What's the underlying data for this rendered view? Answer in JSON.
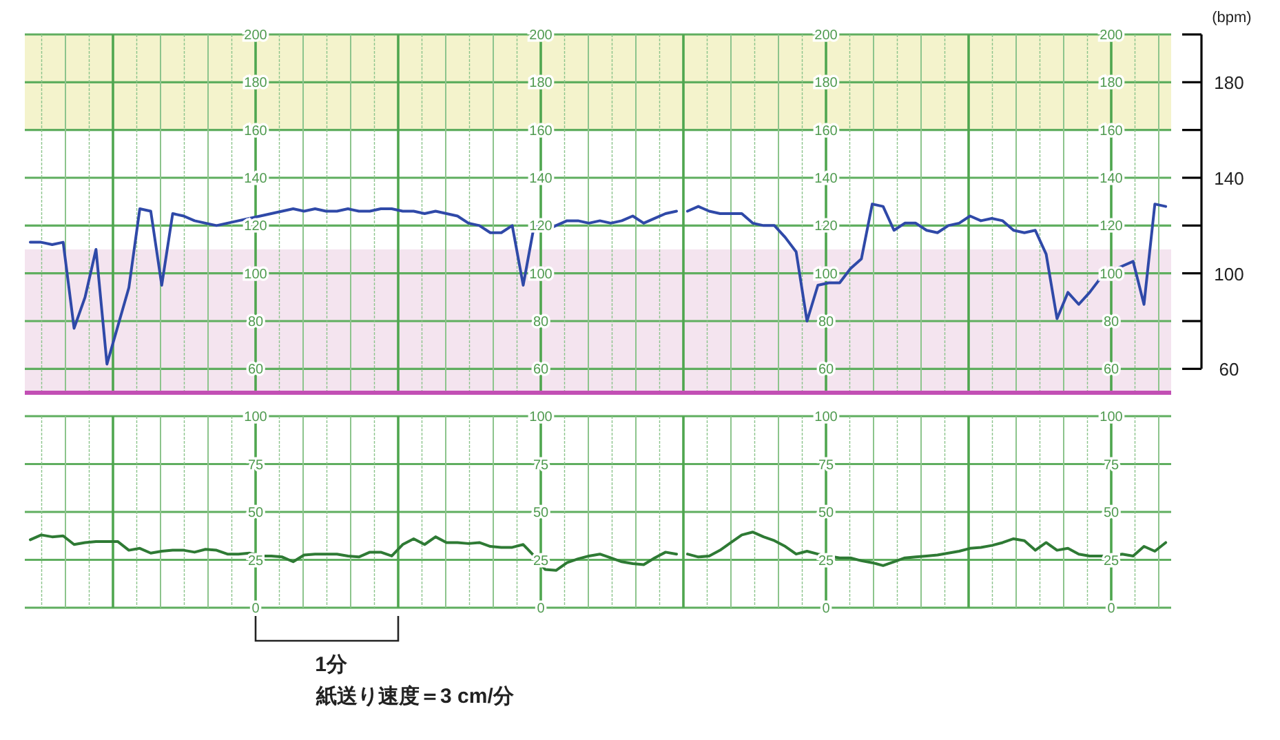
{
  "chart_data": [
    {
      "type": "line",
      "categories": [
        null,
        null,
        null,
        null,
        null,
        null,
        null,
        null,
        null,
        null,
        null,
        null,
        null,
        null,
        null,
        null,
        null,
        null,
        null,
        null,
        null,
        null,
        null,
        null,
        null,
        null,
        null,
        null,
        null,
        null,
        null,
        null,
        null,
        null,
        null,
        null,
        null,
        null,
        null,
        null,
        null,
        null,
        null,
        null,
        null,
        null,
        null,
        null,
        null,
        null,
        null,
        null,
        null,
        null,
        null,
        null,
        null,
        null,
        null,
        null
      ],
      "series": [
        {
          "color": "#2f49a8",
          "values": [
            113,
            113,
            112,
            113,
            77,
            90,
            110,
            62,
            78,
            94,
            127,
            126,
            95,
            125,
            124,
            122,
            121,
            120,
            121,
            122,
            123,
            124,
            125,
            126,
            127,
            126,
            127,
            126,
            126,
            127,
            126,
            126,
            127,
            127,
            126,
            126,
            125,
            126,
            125,
            124,
            121,
            120,
            117,
            117,
            120,
            95,
            120,
            118,
            120,
            122,
            122,
            121,
            122,
            121,
            122,
            124,
            121,
            123,
            125,
            126
          ]
        }
      ],
      "ylim": [
        50,
        200
      ],
      "yticks": [
        60,
        80,
        100,
        120,
        140,
        160,
        180,
        200
      ],
      "y3lim": [
        50,
        200
      ],
      "y3ticks": [
        60,
        80,
        100,
        120,
        140,
        160,
        180,
        200
      ],
      "grid": true,
      "bands": [
        {
          "axis": "y",
          "from": 160,
          "to": 200,
          "color": "#f4f3cc"
        },
        {
          "axis": "y",
          "from": 50,
          "to": 110,
          "color": "#f4e4ef"
        }
      ],
      "ref_lines": [
        {
          "axis": "y",
          "value": 50,
          "color": "#c24fb4"
        }
      ]
    },
    {
      "type": "line",
      "categories": [
        null,
        null,
        null,
        null,
        null,
        null,
        null,
        null,
        null,
        null,
        null,
        null,
        null,
        null,
        null,
        null,
        null,
        null,
        null,
        null,
        null,
        null,
        null,
        null,
        null,
        null,
        null,
        null,
        null,
        null,
        null,
        null,
        null,
        null,
        null,
        null,
        null,
        null,
        null,
        null,
        null,
        null,
        null,
        null,
        null
      ],
      "series": [
        {
          "color": "#2f49a8",
          "values": [
            126,
            128,
            126,
            125,
            125,
            125,
            121,
            120,
            120,
            115,
            109,
            80,
            95,
            96,
            96,
            102,
            106,
            129,
            128,
            118,
            121,
            121,
            118,
            117,
            120,
            121,
            124,
            122,
            123,
            122,
            118,
            117,
            118,
            108,
            81,
            92,
            87,
            92,
            98,
            101,
            103,
            105,
            87,
            129,
            128
          ]
        }
      ],
      "ylim": [
        50,
        200
      ],
      "yticks": [
        60,
        80,
        100,
        120,
        140,
        160,
        180,
        200
      ],
      "y3lim": [
        50,
        200
      ],
      "y3ticks": [
        60,
        80,
        100,
        120,
        140,
        160,
        180,
        200
      ],
      "y2lim": [
        50,
        200
      ],
      "y2ticks": [
        60,
        {
          "value": 80,
          "label": null
        },
        100,
        {
          "value": 120,
          "label": null
        },
        140,
        {
          "value": 160,
          "label": null
        },
        180,
        {
          "value": 200,
          "label": null
        }
      ],
      "y2label": "(bpm)",
      "grid": true,
      "bands": [
        {
          "axis": "y",
          "from": 160,
          "to": 200,
          "color": "#f4f3cc"
        },
        {
          "axis": "y",
          "from": 50,
          "to": 110,
          "color": "#f4e4ef"
        }
      ],
      "ref_lines": [
        {
          "axis": "y",
          "value": 50,
          "color": "#c24fb4"
        }
      ]
    },
    {
      "type": "line",
      "categories": [
        null,
        null,
        null,
        null,
        null,
        null,
        null,
        null,
        null,
        null,
        null,
        null,
        null,
        null,
        null,
        null,
        null,
        null,
        null,
        null,
        null,
        null,
        null,
        null,
        null,
        null,
        null,
        null,
        null,
        null,
        null,
        null,
        null,
        null,
        null,
        null,
        null,
        null,
        null,
        null,
        null,
        null,
        null,
        null,
        null,
        null,
        null,
        null,
        null,
        null,
        null,
        null,
        null,
        null,
        null,
        null,
        null,
        null,
        null,
        null
      ],
      "series": [
        {
          "color": "#2e7a34",
          "values": [
            35.5,
            38,
            37,
            37.5,
            33,
            34,
            34.5,
            34.5,
            34.5,
            30,
            31,
            28.5,
            29.5,
            30,
            30,
            29,
            30.5,
            30,
            28,
            28,
            28.5,
            27,
            27,
            26.5,
            24,
            27.5,
            28,
            28,
            28,
            27,
            26.5,
            29,
            29,
            27,
            33,
            36,
            33,
            37,
            34,
            34,
            33.5,
            34,
            32,
            31.5,
            31.5,
            33,
            27,
            20,
            19.5,
            23.5,
            25.5,
            27,
            28,
            26,
            24,
            23,
            22.5,
            26,
            29,
            28
          ]
        }
      ],
      "ylim": [
        0,
        100
      ],
      "yticks": [
        0,
        25,
        50,
        75,
        100
      ],
      "y3lim": [
        0,
        100
      ],
      "y3ticks": [
        0,
        25,
        50,
        75,
        100
      ],
      "grid": true,
      "annotations": [
        "1分",
        "紙送り速度＝3 cm/分"
      ]
    },
    {
      "type": "line",
      "categories": [
        null,
        null,
        null,
        null,
        null,
        null,
        null,
        null,
        null,
        null,
        null,
        null,
        null,
        null,
        null,
        null,
        null,
        null,
        null,
        null,
        null,
        null,
        null,
        null,
        null,
        null,
        null,
        null,
        null,
        null,
        null,
        null,
        null,
        null,
        null,
        null,
        null,
        null,
        null,
        null,
        null,
        null,
        null,
        null,
        null
      ],
      "series": [
        {
          "color": "#2e7a34",
          "values": [
            28,
            26.5,
            27,
            30,
            34,
            38,
            39.5,
            37,
            35,
            32,
            28,
            29.5,
            28,
            27,
            26,
            26,
            24.5,
            23.5,
            22,
            24,
            26,
            26.5,
            27,
            27.5,
            28.5,
            29.5,
            31,
            31.5,
            32.5,
            34,
            36,
            35,
            30,
            34,
            30,
            31,
            28,
            27,
            27,
            27,
            28,
            27,
            32,
            29.5,
            34
          ]
        }
      ],
      "ylim": [
        0,
        100
      ],
      "yticks": [
        0,
        25,
        50,
        75,
        100
      ],
      "y3lim": [
        0,
        100
      ],
      "y3ticks": [
        0,
        25,
        50,
        75,
        100
      ],
      "grid": true
    }
  ]
}
